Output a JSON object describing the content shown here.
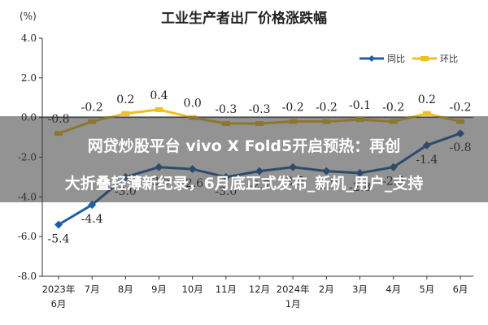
{
  "chart_data": {
    "type": "line",
    "title": "工业生产者出厂价格涨跌幅",
    "unit_label": "(%)",
    "ylim": [
      -8.0,
      4.0
    ],
    "yticks": [
      "4.0",
      "2.0",
      "0.0",
      "-2.0",
      "-4.0",
      "-6.0",
      "-8.0"
    ],
    "categories": [
      [
        "2023年",
        "6月"
      ],
      [
        "7月"
      ],
      [
        "8月"
      ],
      [
        "9月"
      ],
      [
        "10月"
      ],
      [
        "11月"
      ],
      [
        "12月"
      ],
      [
        "2024年",
        "1月"
      ],
      [
        "2月"
      ],
      [
        "3月"
      ],
      [
        "4月"
      ],
      [
        "5月"
      ],
      [
        "6月"
      ]
    ],
    "legend_position": "top-right",
    "grid": false,
    "series": [
      {
        "name": "同比",
        "color": "#1f5fa8",
        "values": [
          -5.4,
          -4.4,
          -3.0,
          -2.5,
          -2.6,
          -3.0,
          -2.7,
          -2.5,
          -2.7,
          -2.8,
          -2.5,
          -1.4,
          -0.8
        ]
      },
      {
        "name": "环比",
        "color": "#f0c020",
        "values": [
          -0.8,
          -0.2,
          0.2,
          0.4,
          0.0,
          -0.3,
          -0.3,
          -0.2,
          -0.2,
          -0.1,
          -0.2,
          0.2,
          -0.2
        ]
      }
    ],
    "value_labels": {
      "同比": [
        "-5.4",
        "-4.4",
        "-3.0",
        "-2.5",
        "-2.6",
        "-3.0",
        "-2.7",
        "-2.5",
        "-2.7",
        "-2.8",
        "-2.5",
        "-1.4",
        "-0.8"
      ],
      "环比": [
        "-0.8",
        "-0.2",
        "0.2",
        "0.4",
        "0.0",
        "-0.3",
        "-0.3",
        "-0.2",
        "-0.2",
        "-0.1",
        "-0.2",
        "0.2",
        "-0.2"
      ]
    }
  },
  "overlay_banner": {
    "line1": "网贷炒股平台 vivo X Fold5开启预热：再创",
    "line2": "大折叠轻薄新纪录，6月底正式发布_新机_用户_支持"
  }
}
